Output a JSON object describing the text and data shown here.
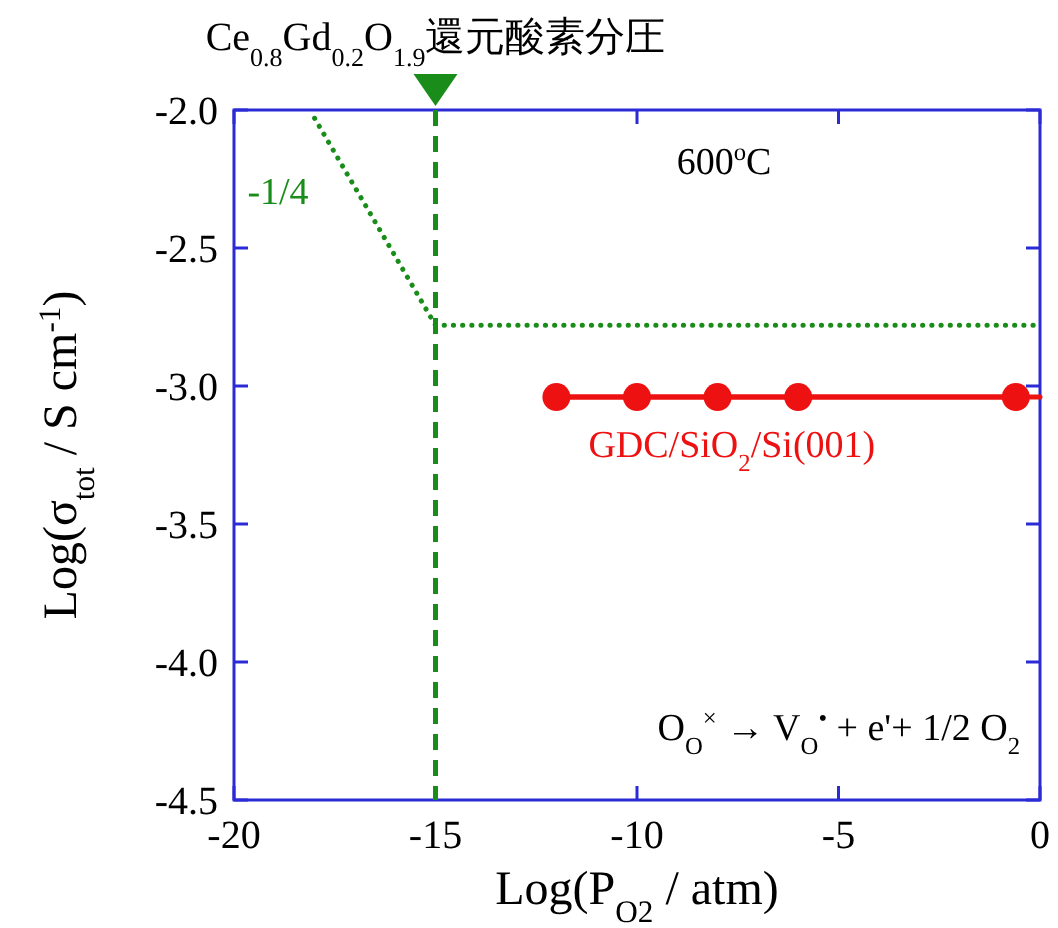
{
  "chart_data": {
    "type": "line",
    "xlabel": "Log(P$_{O2}$ / atm)",
    "ylabel": "Log(σ$_{tot}$ / S cm$^{-1}$)",
    "xlim": [
      -20,
      0
    ],
    "xticks": [
      -20,
      -15,
      -10,
      -5,
      0
    ],
    "ylim": [
      -4.5,
      -2
    ],
    "yticks": [
      {
        "value": -4.5,
        "label": "-4.5"
      },
      {
        "value": -4,
        "label": "-4.0"
      },
      {
        "value": -3.5,
        "label": "-3.5"
      },
      {
        "value": -3,
        "label": "-3.0"
      },
      {
        "value": -2.5,
        "label": "-2.5"
      },
      {
        "value": -2,
        "label": "-2.0"
      }
    ],
    "grid": false,
    "legend": false,
    "series": [
      {
        "type": "line",
        "color": "#ee1111",
        "x": [
          -12,
          0
        ],
        "values": [
          -3.04,
          -3.04
        ],
        "line_style": "solid"
      },
      {
        "type": "line",
        "name": "GDC/SiO$_{2}$/Si(001)",
        "color": "#ee1111",
        "x": [
          -12,
          -10,
          -8,
          -6,
          -0.6
        ],
        "values": [
          -3.04,
          -3.04,
          -3.04,
          -3.04,
          -3.04
        ],
        "marker": "circle",
        "line_style": "solid"
      },
      {
        "type": "line",
        "color": "#1a8c1a",
        "x": [
          -18,
          -15,
          0
        ],
        "values": [
          -2.03,
          -2.78,
          -2.78
        ],
        "marker": "none",
        "line_style": "dotted"
      }
    ],
    "ref_lines": [
      {
        "axis": "x",
        "value": -15,
        "label": "Ce$_{0.8}$Gd$_{0.2}$O$_{1.9}$還元酸素分圧",
        "color": "#1a8c1a",
        "line_style": "dashed"
      }
    ],
    "annotations": [
      "600$^{o}$C",
      "-1/4",
      "O$_{O}$$^{×}$ → V$_{O}$$^{•}$ + e'+ 1/2 O$_{2}$"
    ]
  }
}
